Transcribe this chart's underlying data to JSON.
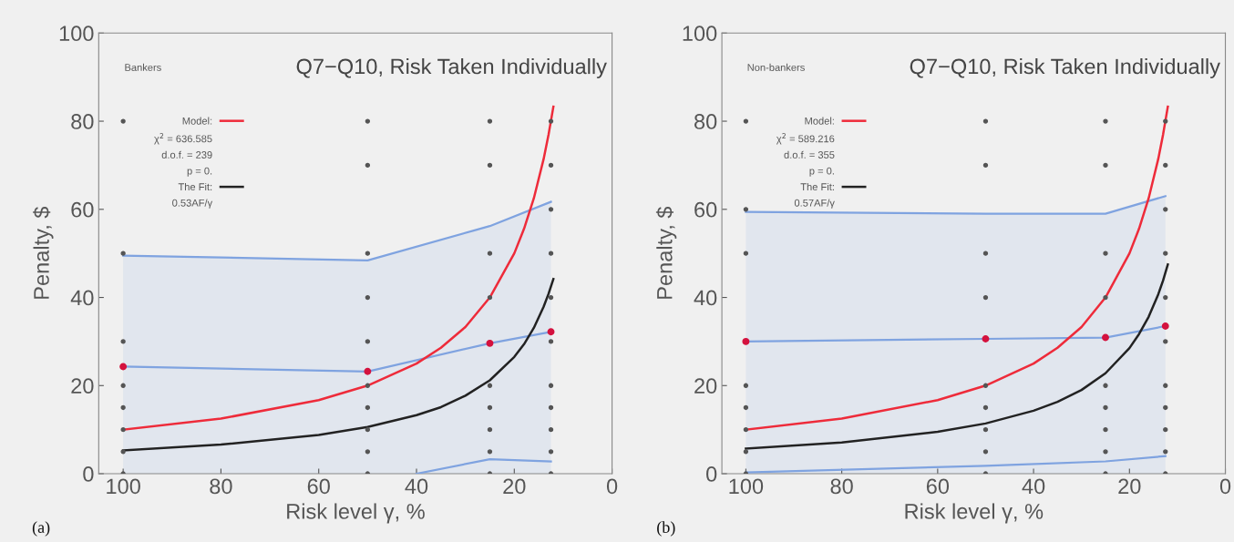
{
  "chart_data": [
    {
      "type": "line",
      "title": "Q7−Q10, Risk Taken Individually",
      "xlabel": "Risk level γ, %",
      "ylabel": "Penalty, $",
      "xlim": [
        105,
        0
      ],
      "xticks": [
        100,
        80,
        60,
        40,
        20,
        0
      ],
      "ylim": [
        0,
        100
      ],
      "yticks": [
        0,
        20,
        40,
        60,
        80,
        100
      ],
      "grid": false,
      "legend": "top left",
      "annotations": [
        "Bankers",
        "χ$^{2}$ = 636.585",
        "d.o.f. = 239",
        "p = 0.",
        "0.53AF/γ",
        "(a)"
      ],
      "series": [
        {
          "type": "scatter",
          "color": "#555555",
          "x": [
            100,
            100,
            100,
            100,
            100,
            100,
            100,
            100,
            50,
            50,
            50,
            50,
            50,
            50,
            50,
            50,
            50,
            50,
            25,
            25,
            25,
            25,
            25,
            25,
            25,
            25,
            25,
            12.5,
            12.5,
            12.5,
            12.5,
            12.5,
            12.5,
            12.5,
            12.5,
            12.5,
            12.5,
            12.5
          ],
          "values": [
            80,
            50,
            30,
            20,
            15,
            10,
            5,
            0,
            80,
            70,
            50,
            40,
            30,
            20,
            15,
            10,
            5,
            0,
            80,
            70,
            50,
            40,
            20,
            15,
            10,
            5,
            0,
            80,
            70,
            60,
            50,
            40,
            30,
            20,
            15,
            10,
            5,
            0
          ]
        },
        {
          "type": "area",
          "color": "#7fa3e0",
          "x": [
            100,
            50,
            25,
            12.5
          ],
          "values": [
            49.5,
            48.4,
            56.2,
            61.7
          ]
        },
        {
          "color": "#7fa3e0",
          "x": [
            40,
            25,
            12.5
          ],
          "values": [
            0,
            3.3,
            2.8
          ]
        },
        {
          "color": "#7fa3e0",
          "x": [
            100,
            50,
            25,
            12.5
          ],
          "values": [
            24.3,
            23.2,
            29.6,
            32.2
          ]
        },
        {
          "type": "scatter",
          "color": "#d4123e",
          "x": [
            100,
            50,
            25,
            12.5
          ],
          "values": [
            24.3,
            23.2,
            29.6,
            32.2
          ]
        },
        {
          "name": "Model:",
          "color": "#ee2b3a",
          "x": [
            100,
            80,
            60,
            50,
            40,
            35,
            30,
            25,
            20,
            18,
            16,
            14,
            13,
            12
          ],
          "values": [
            10,
            12.5,
            16.7,
            20,
            25,
            28.6,
            33.3,
            40,
            50,
            55.6,
            62.5,
            71.4,
            76.9,
            83.3
          ]
        },
        {
          "name": "The Fit:",
          "color": "#222222",
          "x": [
            100,
            80,
            60,
            50,
            40,
            35,
            30,
            25,
            20,
            18,
            16,
            14,
            13,
            12
          ],
          "values": [
            5.3,
            6.6,
            8.8,
            10.6,
            13.3,
            15.1,
            17.7,
            21.2,
            26.5,
            29.4,
            33.1,
            37.9,
            40.8,
            44.2
          ]
        }
      ]
    },
    {
      "type": "line",
      "title": "Q7−Q10, Risk Taken Individually",
      "xlabel": "Risk level γ, %",
      "ylabel": "Penalty, $",
      "xlim": [
        105,
        0
      ],
      "xticks": [
        100,
        80,
        60,
        40,
        20,
        0
      ],
      "ylim": [
        0,
        100
      ],
      "yticks": [
        0,
        20,
        40,
        60,
        80,
        100
      ],
      "grid": false,
      "legend": "top left",
      "annotations": [
        "Non-bankers",
        "χ$^{2}$ = 589.216",
        "d.o.f. = 355",
        "p = 0.",
        "0.57AF/γ",
        "(b)"
      ],
      "series": [
        {
          "type": "scatter",
          "color": "#555555",
          "x": [
            100,
            100,
            100,
            100,
            100,
            100,
            100,
            100,
            50,
            50,
            50,
            50,
            50,
            50,
            50,
            50,
            50,
            25,
            25,
            25,
            25,
            25,
            25,
            25,
            25,
            25,
            12.5,
            12.5,
            12.5,
            12.5,
            12.5,
            12.5,
            12.5,
            12.5,
            12.5,
            12.5,
            12.5
          ],
          "values": [
            80,
            60,
            50,
            20,
            15,
            10,
            5,
            0,
            80,
            70,
            50,
            40,
            20,
            15,
            10,
            5,
            0,
            80,
            70,
            50,
            40,
            20,
            15,
            10,
            5,
            0,
            80,
            70,
            60,
            50,
            40,
            30,
            20,
            15,
            10,
            5,
            0
          ]
        },
        {
          "type": "area",
          "color": "#7fa3e0",
          "x": [
            100,
            50,
            25,
            12.5
          ],
          "values": [
            59.4,
            59.0,
            59.0,
            63.0
          ]
        },
        {
          "color": "#7fa3e0",
          "x": [
            100,
            50,
            25,
            12.5
          ],
          "values": [
            0.3,
            1.8,
            2.8,
            4.0
          ]
        },
        {
          "color": "#7fa3e0",
          "x": [
            100,
            50,
            25,
            12.5
          ],
          "values": [
            30.0,
            30.6,
            30.9,
            33.5
          ]
        },
        {
          "type": "scatter",
          "color": "#d4123e",
          "x": [
            100,
            50,
            25,
            12.5
          ],
          "values": [
            30.0,
            30.6,
            30.9,
            33.5
          ]
        },
        {
          "name": "Model:",
          "color": "#ee2b3a",
          "x": [
            100,
            80,
            60,
            50,
            40,
            35,
            30,
            25,
            20,
            18,
            16,
            14,
            13,
            12
          ],
          "values": [
            10,
            12.5,
            16.7,
            20,
            25,
            28.6,
            33.3,
            40,
            50,
            55.6,
            62.5,
            71.4,
            76.9,
            83.3
          ]
        },
        {
          "name": "The Fit:",
          "color": "#222222",
          "x": [
            100,
            80,
            60,
            50,
            40,
            35,
            30,
            25,
            20,
            18,
            16,
            14,
            13,
            12
          ],
          "values": [
            5.7,
            7.1,
            9.5,
            11.4,
            14.3,
            16.3,
            19,
            22.8,
            28.5,
            31.7,
            35.6,
            40.7,
            43.8,
            47.5
          ]
        }
      ]
    }
  ]
}
